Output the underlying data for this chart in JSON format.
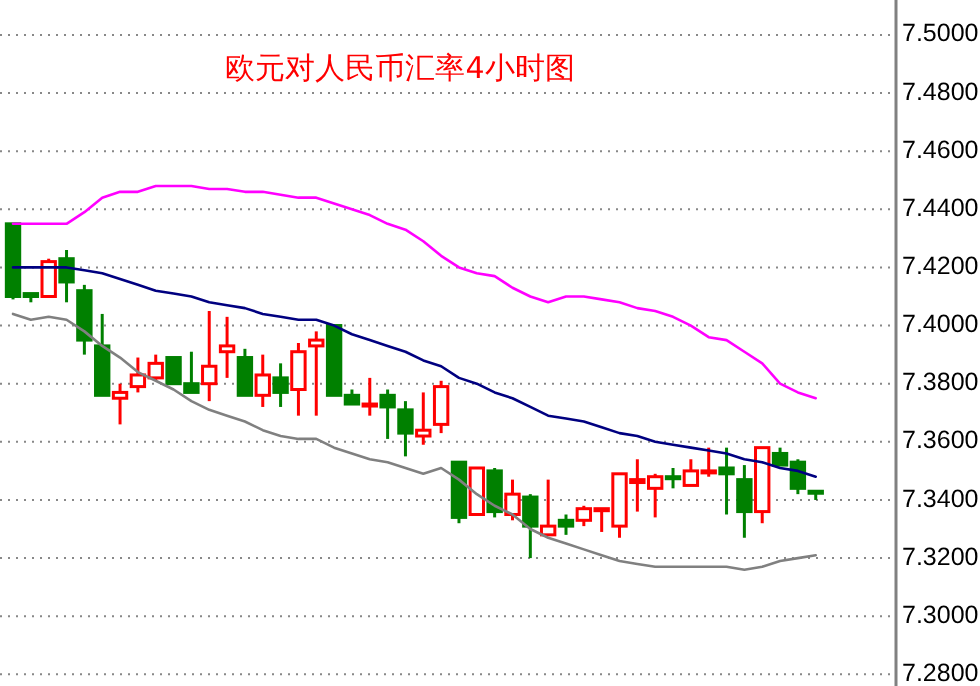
{
  "chart_data": {
    "type": "candlestick",
    "title": "欧元对人民币汇率4小时图",
    "categories": [
      null,
      null,
      null,
      null,
      null,
      null,
      null,
      null,
      null,
      null,
      null,
      null,
      null,
      null,
      null,
      null,
      null,
      null,
      null,
      null,
      null,
      null,
      null,
      null,
      null,
      null,
      null,
      null,
      null,
      null,
      null,
      null,
      null,
      null,
      null,
      null,
      null,
      null,
      null,
      null,
      null,
      null,
      null,
      null,
      null,
      null
    ],
    "ohlc": [
      [
        7.435,
        7.435,
        7.409,
        7.41
      ],
      [
        7.411,
        7.411,
        7.408,
        7.41
      ],
      [
        7.41,
        7.423,
        7.41,
        7.422
      ],
      [
        7.423,
        7.426,
        7.408,
        7.415
      ],
      [
        7.412,
        7.414,
        7.39,
        7.395
      ],
      [
        7.393,
        7.404,
        7.376,
        7.376
      ],
      [
        7.375,
        7.38,
        7.366,
        7.377
      ],
      [
        7.379,
        7.389,
        7.377,
        7.383
      ],
      [
        7.382,
        7.39,
        7.381,
        7.387
      ],
      [
        7.389,
        7.389,
        7.38,
        7.38
      ],
      [
        7.38,
        7.391,
        7.377,
        7.377
      ],
      [
        7.38,
        7.405,
        7.374,
        7.386
      ],
      [
        7.391,
        7.403,
        7.382,
        7.393
      ],
      [
        7.389,
        7.392,
        7.376,
        7.376
      ],
      [
        7.376,
        7.39,
        7.372,
        7.383
      ],
      [
        7.382,
        7.387,
        7.372,
        7.377
      ],
      [
        7.378,
        7.394,
        7.369,
        7.391
      ],
      [
        7.393,
        7.398,
        7.369,
        7.395
      ],
      [
        7.4,
        7.4,
        7.376,
        7.376
      ],
      [
        7.376,
        7.378,
        7.373,
        7.373
      ],
      [
        7.373,
        7.382,
        7.369,
        7.373
      ],
      [
        7.376,
        7.378,
        7.361,
        7.372
      ],
      [
        7.371,
        7.374,
        7.355,
        7.363
      ],
      [
        7.362,
        7.377,
        7.359,
        7.364
      ],
      [
        7.366,
        7.381,
        7.363,
        7.379
      ],
      [
        7.353,
        7.353,
        7.332,
        7.334
      ],
      [
        7.335,
        7.351,
        7.335,
        7.351
      ],
      [
        7.35,
        7.351,
        7.334,
        7.336
      ],
      [
        7.335,
        7.347,
        7.333,
        7.342
      ],
      [
        7.341,
        7.342,
        7.32,
        7.331
      ],
      [
        7.328,
        7.347,
        7.328,
        7.331
      ],
      [
        7.333,
        7.335,
        7.328,
        7.331
      ],
      [
        7.333,
        7.338,
        7.331,
        7.337
      ],
      [
        7.337,
        7.337,
        7.329,
        7.337
      ],
      [
        7.331,
        7.349,
        7.327,
        7.349
      ],
      [
        7.346,
        7.354,
        7.336,
        7.347
      ],
      [
        7.344,
        7.349,
        7.334,
        7.348
      ],
      [
        7.348,
        7.351,
        7.344,
        7.348
      ],
      [
        7.345,
        7.354,
        7.345,
        7.35
      ],
      [
        7.35,
        7.358,
        7.348,
        7.35
      ],
      [
        7.351,
        7.358,
        7.335,
        7.349
      ],
      [
        7.347,
        7.352,
        7.327,
        7.336
      ],
      [
        7.336,
        7.358,
        7.332,
        7.358
      ],
      [
        7.356,
        7.358,
        7.352,
        7.352
      ],
      [
        7.353,
        7.354,
        7.342,
        7.344
      ],
      [
        7.343,
        7.343,
        7.34,
        7.343
      ]
    ],
    "colors": [
      "#008000",
      "#008000",
      "#ff0000",
      "#008000",
      "#008000",
      "#008000",
      "#ff0000",
      "#ff0000",
      "#ff0000",
      "#008000",
      "#008000",
      "#ff0000",
      "#ff0000",
      "#008000",
      "#ff0000",
      "#008000",
      "#ff0000",
      "#ff0000",
      "#008000",
      "#008000",
      "#ff0000",
      "#008000",
      "#008000",
      "#ff0000",
      "#ff0000",
      "#008000",
      "#ff0000",
      "#008000",
      "#ff0000",
      "#008000",
      "#ff0000",
      "#008000",
      "#ff0000",
      "#ff0000",
      "#ff0000",
      "#ff0000",
      "#ff0000",
      "#008000",
      "#ff0000",
      "#ff0000",
      "#008000",
      "#008000",
      "#ff0000",
      "#008000",
      "#008000",
      "#008000"
    ],
    "series": [
      {
        "type": "line",
        "color": "#ff00ff",
        "values": [
          7.435,
          7.435,
          7.435,
          7.435,
          7.439,
          7.444,
          7.446,
          7.446,
          7.448,
          7.448,
          7.448,
          7.447,
          7.447,
          7.446,
          7.446,
          7.445,
          7.444,
          7.444,
          7.442,
          7.44,
          7.438,
          7.435,
          7.433,
          7.429,
          7.424,
          7.42,
          7.418,
          7.417,
          7.413,
          7.41,
          7.408,
          7.41,
          7.41,
          7.409,
          7.408,
          7.406,
          7.405,
          7.403,
          7.4,
          7.396,
          7.395,
          7.391,
          7.387,
          7.38,
          7.377,
          7.375
        ]
      },
      {
        "type": "line",
        "color": "#000080",
        "values": [
          7.42,
          7.42,
          7.42,
          7.42,
          7.419,
          7.418,
          7.416,
          7.414,
          7.412,
          7.411,
          7.41,
          7.408,
          7.407,
          7.406,
          7.404,
          7.403,
          7.402,
          7.402,
          7.4,
          7.397,
          7.395,
          7.393,
          7.391,
          7.388,
          7.386,
          7.382,
          7.38,
          7.377,
          7.375,
          7.372,
          7.369,
          7.368,
          7.367,
          7.365,
          7.363,
          7.362,
          7.36,
          7.359,
          7.358,
          7.357,
          7.356,
          7.354,
          7.353,
          7.351,
          7.35,
          7.348
        ]
      },
      {
        "type": "line",
        "color": "#808080",
        "values": [
          7.404,
          7.402,
          7.403,
          7.402,
          7.398,
          7.393,
          7.389,
          7.384,
          7.381,
          7.378,
          7.374,
          7.371,
          7.369,
          7.367,
          7.364,
          7.362,
          7.361,
          7.361,
          7.358,
          7.356,
          7.354,
          7.353,
          7.351,
          7.349,
          7.351,
          7.347,
          7.342,
          7.338,
          7.335,
          7.33,
          7.327,
          7.325,
          7.323,
          7.321,
          7.319,
          7.318,
          7.317,
          7.317,
          7.317,
          7.317,
          7.317,
          7.316,
          7.317,
          7.319,
          7.32,
          7.321
        ]
      }
    ],
    "ylim": [
      7.276,
      7.512
    ],
    "yticks": [
      {
        "value": 7.28,
        "label": "7.2800"
      },
      {
        "value": 7.3,
        "label": "7.3000"
      },
      {
        "value": 7.32,
        "label": "7.3200"
      },
      {
        "value": 7.34,
        "label": "7.3400"
      },
      {
        "value": 7.36,
        "label": "7.3600"
      },
      {
        "value": 7.38,
        "label": "7.3800"
      },
      {
        "value": 7.4,
        "label": "7.4000"
      },
      {
        "value": 7.42,
        "label": "7.4200"
      },
      {
        "value": 7.44,
        "label": "7.4400"
      },
      {
        "value": 7.46,
        "label": "7.4600"
      },
      {
        "value": 7.48,
        "label": "7.4800"
      },
      {
        "value": 7.5,
        "label": "7.5000"
      }
    ],
    "grid": "y",
    "tick_labels": "y"
  }
}
